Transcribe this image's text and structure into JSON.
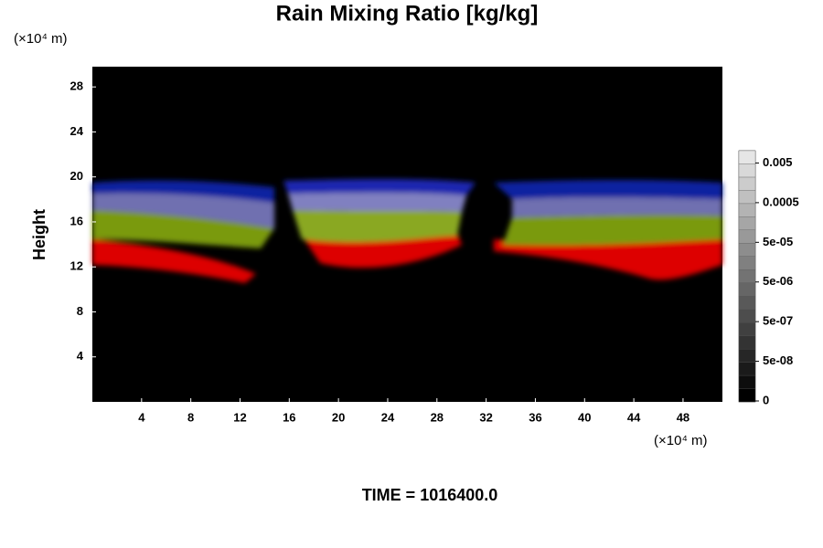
{
  "chart_data": {
    "type": "contour",
    "title": "Rain Mixing Ratio [kg/kg]",
    "ylabel": "Height",
    "y_unit": "(×10⁴ m)",
    "x_unit": "(×10⁴ m)",
    "xlim": [
      0,
      51.2
    ],
    "xticks": [
      4,
      8,
      12,
      16,
      20,
      24,
      28,
      32,
      36,
      40,
      44,
      48
    ],
    "ylim": [
      0,
      29.8
    ],
    "yticks": [
      4,
      8,
      12,
      16,
      20,
      24,
      28
    ],
    "colorbar_ticks": [
      0,
      {
        "value": 5e-08,
        "label": "5e-08"
      },
      {
        "value": 5e-07,
        "label": "5e-07"
      },
      {
        "value": 5e-06,
        "label": "5e-06"
      },
      {
        "value": 5e-05,
        "label": "5e-05"
      },
      0.0005,
      0.005
    ],
    "footer": "TIME = 1016400.0"
  }
}
